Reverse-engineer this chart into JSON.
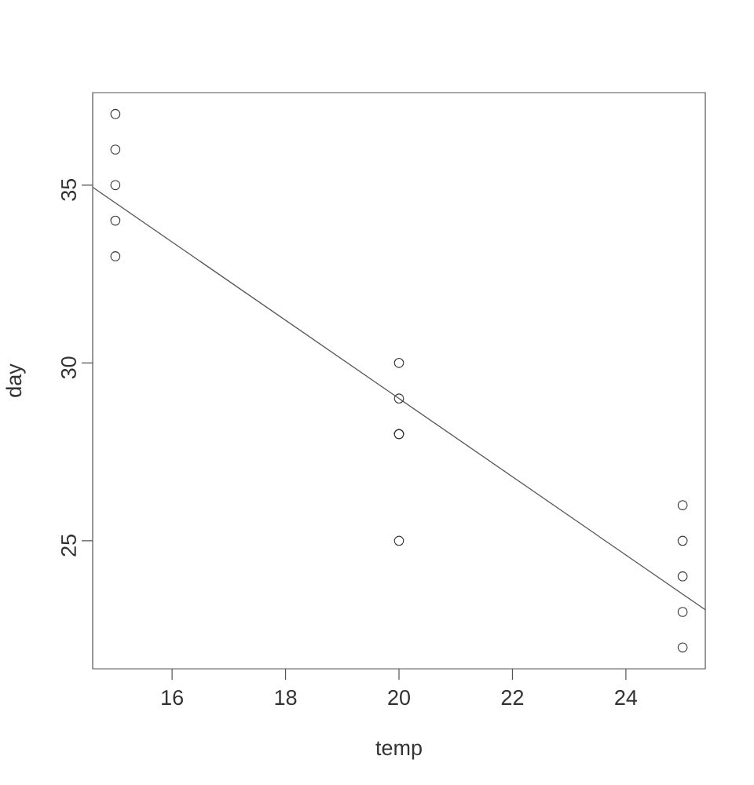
{
  "chart_data": {
    "type": "scatter",
    "xlabel": "temp",
    "ylabel": "day",
    "xlim": [
      14.6,
      25.4
    ],
    "ylim": [
      21.4,
      37.6
    ],
    "xticks": [
      16,
      18,
      20,
      22,
      24
    ],
    "yticks": [
      25,
      30,
      35
    ],
    "series": [
      {
        "color": "#333333",
        "marker": "circle",
        "x": [
          15,
          15,
          15,
          15,
          15,
          20,
          20,
          20,
          20,
          20,
          25,
          25,
          25,
          25,
          25
        ],
        "values": [
          37,
          36,
          35,
          34,
          33,
          30,
          29,
          28,
          28,
          25,
          26,
          25,
          24,
          23,
          22
        ]
      },
      {
        "type": "line",
        "marker": "none",
        "color": "#555555",
        "x": [
          14.6,
          25.4
        ],
        "values": [
          34.94,
          23.06
        ]
      }
    ]
  }
}
